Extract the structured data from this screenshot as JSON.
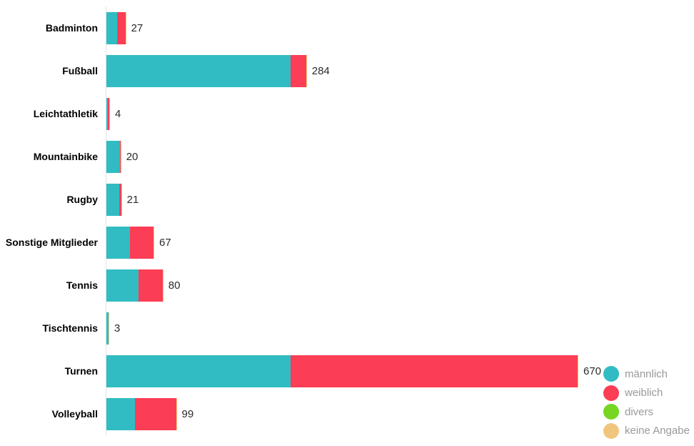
{
  "chart_data": {
    "type": "bar",
    "orientation": "horizontal",
    "stacked": true,
    "title": "",
    "xlabel": "",
    "ylabel": "",
    "grid": false,
    "xlim": [
      0,
      690
    ],
    "categories": [
      "Badminton",
      "Fußball",
      "Leichtathletik",
      "Mountainbike",
      "Rugby",
      "Sonstige Mitglieder",
      "Tennis",
      "Tischtennis",
      "Turnen",
      "Volleyball"
    ],
    "series": [
      {
        "name": "männlich",
        "color": "#31bcc3",
        "values": [
          15,
          262,
          2,
          19,
          18,
          34,
          46,
          3,
          262,
          41
        ]
      },
      {
        "name": "weiblich",
        "color": "#fc3d56",
        "values": [
          12,
          22,
          2,
          1,
          3,
          33,
          34,
          0,
          408,
          58
        ]
      },
      {
        "name": "divers",
        "color": "#77d622",
        "values": [
          0,
          0,
          0,
          0,
          0,
          0,
          0,
          0,
          0,
          0
        ]
      },
      {
        "name": "keine Angabe",
        "color": "#f0c67e",
        "values": [
          0,
          0,
          0,
          0,
          0,
          0,
          0,
          0,
          0,
          0
        ]
      }
    ],
    "totals": [
      27,
      284,
      4,
      20,
      21,
      67,
      80,
      3,
      670,
      99
    ],
    "value_labels": [
      "27",
      "284",
      "4",
      "20",
      "21",
      "67",
      "80",
      "3",
      "670",
      "99"
    ],
    "legend_position": "bottom-right"
  },
  "legend": {
    "items": [
      {
        "label": "männlich",
        "color": "#31bcc3"
      },
      {
        "label": "weiblich",
        "color": "#fc3d56"
      },
      {
        "label": "divers",
        "color": "#77d622"
      },
      {
        "label": "keine Angabe",
        "color": "#f0c67e"
      }
    ]
  },
  "colors": {
    "background": "#ffffff",
    "axis_line": "#e3e3e3",
    "category_text": "#000000",
    "value_text": "#2b2b2b",
    "legend_text": "#999999"
  }
}
